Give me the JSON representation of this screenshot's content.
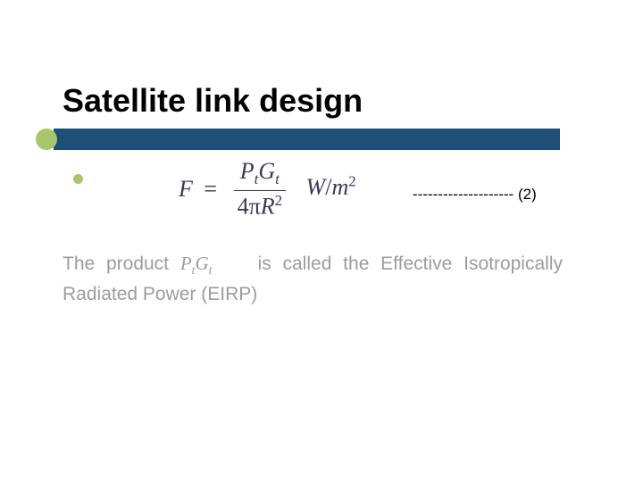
{
  "slide": {
    "title": "Satellite link design",
    "accent_bar_color": "#1f4e79",
    "accent_dot_color": "#a8c66c",
    "background_color": "#ffffff"
  },
  "formula": {
    "lhs": "F",
    "eq": "=",
    "num_P": "P",
    "num_Psub": "t",
    "num_G": "G",
    "num_Gsub": "t",
    "den_4pi": "4π",
    "den_R": "R",
    "den_Rsup": "2",
    "unit_W": "W",
    "unit_slash": "/",
    "unit_m": "m",
    "unit_msup": "2",
    "text_color": "#3a3a55",
    "fontsize": 26
  },
  "eqref": {
    "dashes": "--------------------",
    "label": " (2)"
  },
  "body": {
    "pre": "The product ",
    "P": "P",
    "Psub": "t",
    "G": "G",
    "Gsub": "t",
    "post": " is called the Effective Isotropically Radiated Power (EIRP)",
    "text_color": "#9c9c9c",
    "fontsize": 21
  }
}
